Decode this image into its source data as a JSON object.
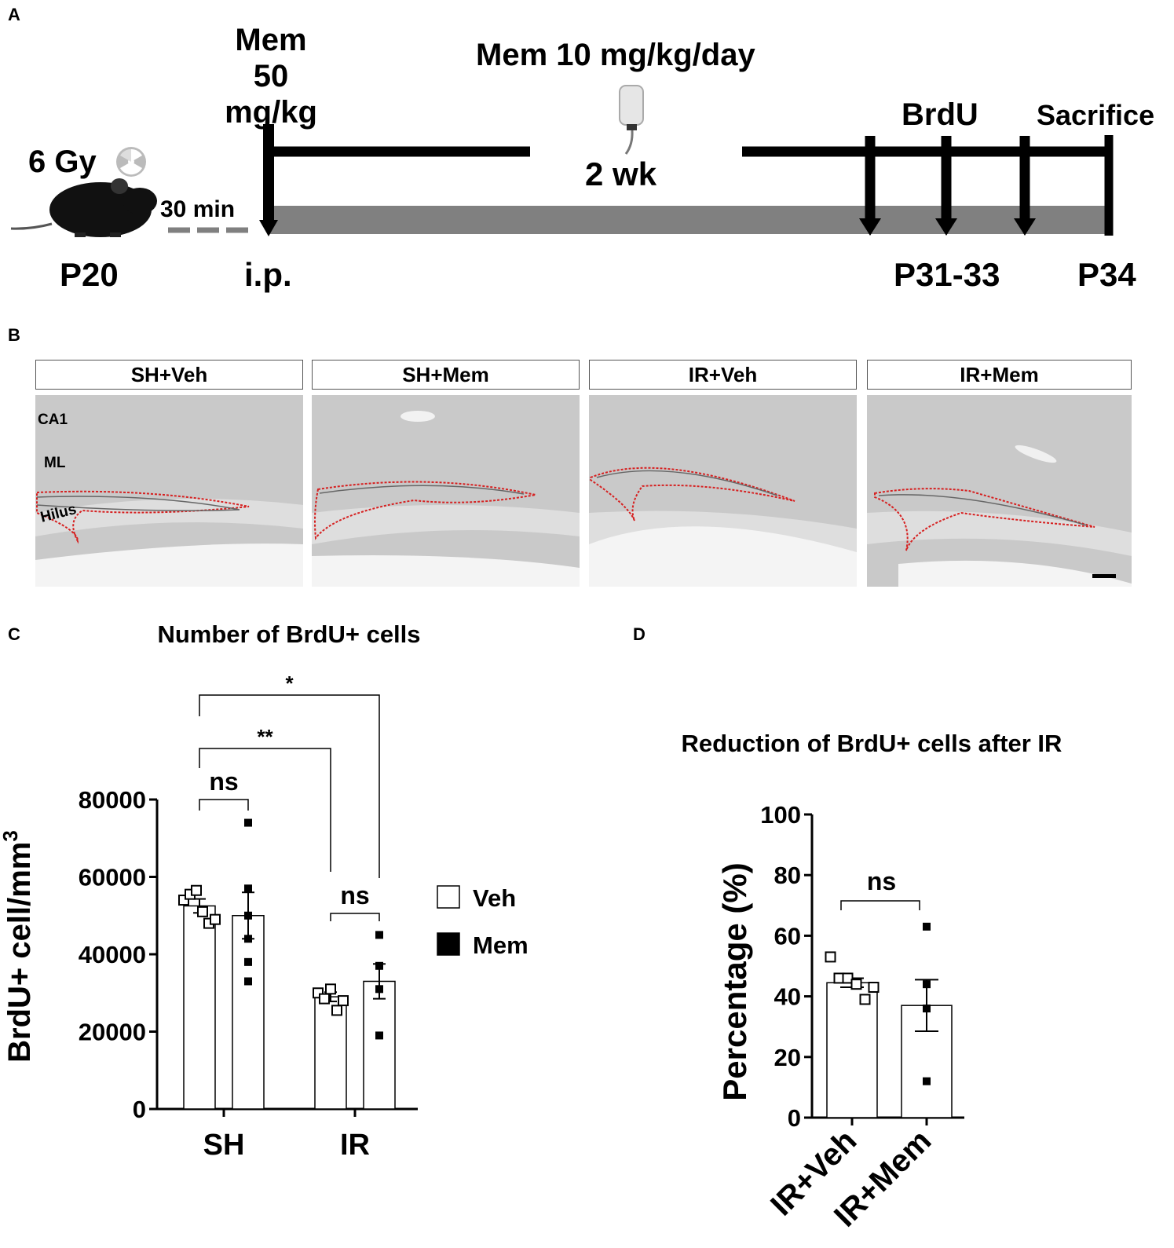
{
  "panel_labels": {
    "a": "A",
    "b": "B",
    "c": "C",
    "d": "D"
  },
  "timeline": {
    "mem_loading_line1": "Mem",
    "mem_loading_line2": "50 mg/kg",
    "mem_daily": "Mem 10 mg/kg/day",
    "duration": "2 wk",
    "brdu": "BrdU",
    "sacrifice": "Sacrifice",
    "dose": "6 Gy",
    "delay": "30 min",
    "p20": "P20",
    "ip": "i.p.",
    "p31_33": "P31-33",
    "p34": "P34"
  },
  "micrographs": {
    "panels": [
      {
        "title": "SH+Veh"
      },
      {
        "title": "SH+Mem"
      },
      {
        "title": "IR+Veh"
      },
      {
        "title": "IR+Mem"
      }
    ],
    "region_labels": {
      "ca1": "CA1",
      "ml": "ML",
      "hilus": "Hilus"
    }
  },
  "colors": {
    "bar_fill": "#ffffff",
    "axis": "#000000",
    "outline_red": "#d62020",
    "timeline_bar": "#808080"
  },
  "chart_data": [
    {
      "type": "bar",
      "title": "Number of BrdU+ cells",
      "ylabel": "BrdU+ cell/mm",
      "ylabel_superscript": "3",
      "ylim": [
        0,
        80000
      ],
      "yticks": [
        0,
        20000,
        40000,
        60000,
        80000
      ],
      "categories": [
        "SH",
        "IR"
      ],
      "legend": {
        "position": "right",
        "entries": [
          "Veh",
          "Mem"
        ]
      },
      "series": [
        {
          "name": "Veh",
          "values": [
            52500,
            29000
          ],
          "sem": [
            1800,
            1200
          ],
          "points": [
            [
              54000,
              55500,
              56500,
              51000,
              48000,
              49000
            ],
            [
              30000,
              28500,
              31000,
              25500,
              28000
            ]
          ]
        },
        {
          "name": "Mem",
          "values": [
            50000,
            33000
          ],
          "sem": [
            6000,
            4500
          ],
          "points": [
            [
              74000,
              57000,
              50000,
              44000,
              38000,
              33000
            ],
            [
              45000,
              37000,
              31000,
              19000
            ]
          ]
        }
      ],
      "annotations": [
        {
          "label": "ns",
          "between": [
            "SH Veh",
            "SH Mem"
          ]
        },
        {
          "label": "ns",
          "between": [
            "IR Veh",
            "IR Mem"
          ]
        },
        {
          "label": "**",
          "between": [
            "SH Veh",
            "IR Veh"
          ]
        },
        {
          "label": "*",
          "between": [
            "SH Veh",
            "IR Mem"
          ]
        }
      ]
    },
    {
      "type": "bar",
      "title": "Reduction of BrdU+ cells after IR",
      "ylabel": "Percentage (%)",
      "ylim": [
        0,
        100
      ],
      "yticks": [
        0,
        20,
        40,
        60,
        80,
        100
      ],
      "categories": [
        "IR+Veh",
        "IR+Mem"
      ],
      "series": [
        {
          "values": [
            44.5,
            37
          ],
          "sem": [
            1.5,
            8.5
          ],
          "points": [
            [
              53,
              46,
              46,
              44,
              39,
              43
            ],
            [
              63,
              44,
              36,
              12
            ]
          ]
        }
      ],
      "annotations": [
        {
          "label": "ns",
          "between": [
            "IR+Veh",
            "IR+Mem"
          ]
        }
      ]
    }
  ]
}
